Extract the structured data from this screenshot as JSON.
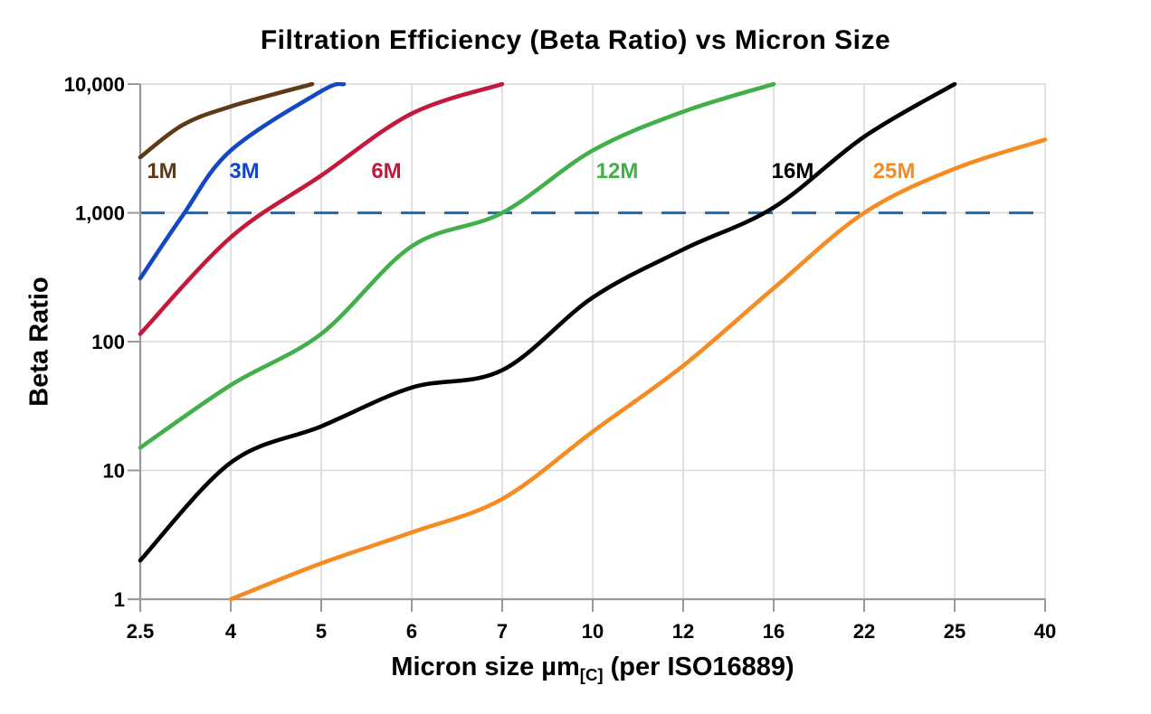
{
  "chart_data": {
    "type": "line",
    "title": "Filtration Efficiency (Beta Ratio) vs Micron Size",
    "ylabel": "Beta Ratio",
    "xlabel_main": "Micron size µm",
    "xlabel_sub": "[C]",
    "xlabel_tail": " (per ISO16889)",
    "x_scale": "categorical-log-spaced",
    "y_scale": "log",
    "categories": [
      2.5,
      4,
      5,
      6,
      7,
      10,
      12,
      16,
      22,
      25,
      40
    ],
    "x_tick_labels": [
      "2.5",
      "4",
      "5",
      "6",
      "7",
      "10",
      "12",
      "16",
      "22",
      "25",
      "40"
    ],
    "y_ticks": [
      1,
      10,
      100,
      1000,
      10000
    ],
    "y_tick_labels": [
      "1",
      "10",
      "100",
      "1,000",
      "10,000"
    ],
    "ylim": [
      1,
      10000
    ],
    "grid": true,
    "legend_position": "inline-labels",
    "colors": {
      "grid": "#d9d9d9",
      "axis": "#999999",
      "reference": "#36689e",
      "text": "#000000",
      "background": "#ffffff"
    },
    "reference_line": {
      "beta": 1000,
      "style": "dashed",
      "color": "#36689e"
    },
    "series": [
      {
        "name": "1M",
        "color": "#5e3a16",
        "label_idx": 0.24,
        "points": [
          [
            2.5,
            2700
          ],
          [
            3.2,
            4800
          ],
          [
            4,
            6700
          ],
          [
            4.9,
            10000
          ]
        ]
      },
      {
        "name": "3M",
        "color": "#1347c5",
        "label_idx": 1.15,
        "points": [
          [
            2.5,
            310
          ],
          [
            3.2,
            950
          ],
          [
            4,
            3050
          ],
          [
            5,
            8800
          ],
          [
            5.25,
            10000
          ]
        ]
      },
      {
        "name": "6M",
        "color": "#c2193d",
        "label_idx": 2.72,
        "points": [
          [
            2.5,
            115
          ],
          [
            4,
            645
          ],
          [
            5,
            1950
          ],
          [
            6,
            5900
          ],
          [
            7,
            10000
          ]
        ]
      },
      {
        "name": "12M",
        "color": "#42af4a",
        "label_idx": 5.27,
        "points": [
          [
            2.5,
            15
          ],
          [
            4,
            46
          ],
          [
            5,
            115
          ],
          [
            6,
            550
          ],
          [
            7,
            1000
          ],
          [
            10,
            3050
          ],
          [
            12,
            6100
          ],
          [
            16,
            10000
          ]
        ]
      },
      {
        "name": "16M",
        "color": "#000000",
        "label_idx": 7.21,
        "points": [
          [
            2.5,
            2
          ],
          [
            4,
            11.5
          ],
          [
            5,
            22
          ],
          [
            6,
            44
          ],
          [
            7,
            60
          ],
          [
            10,
            220
          ],
          [
            12,
            520
          ],
          [
            16,
            1100
          ],
          [
            22,
            3900
          ],
          [
            25,
            10000
          ]
        ]
      },
      {
        "name": "25M",
        "color": "#f68b22",
        "label_idx": 8.33,
        "points": [
          [
            4,
            1
          ],
          [
            5,
            1.9
          ],
          [
            6,
            3.3
          ],
          [
            7,
            6
          ],
          [
            10,
            20
          ],
          [
            12,
            65
          ],
          [
            16,
            260
          ],
          [
            22,
            1000
          ],
          [
            25,
            2200
          ],
          [
            40,
            3700
          ]
        ]
      }
    ]
  }
}
